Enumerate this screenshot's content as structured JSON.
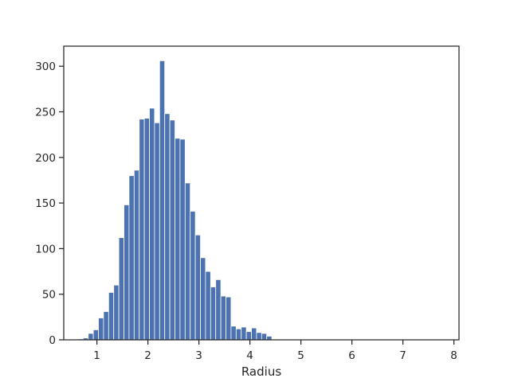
{
  "chart_data": {
    "type": "bar",
    "subtype": "histogram",
    "xlabel": "Radius",
    "ylabel": "",
    "title": "",
    "xlim": [
      0.35,
      8.1
    ],
    "ylim": [
      0,
      322
    ],
    "xticks": [
      1,
      2,
      3,
      4,
      5,
      6,
      7,
      8
    ],
    "yticks": [
      0,
      50,
      100,
      150,
      200,
      250,
      300
    ],
    "bar_color": "#4c72b0",
    "grid": false,
    "bin_start": 0.63,
    "bin_width": 0.1,
    "values": [
      1,
      2,
      7,
      11,
      24,
      31,
      52,
      60,
      112,
      148,
      180,
      186,
      242,
      243,
      254,
      238,
      306,
      248,
      241,
      221,
      220,
      172,
      141,
      115,
      90,
      75,
      58,
      66,
      48,
      47,
      15,
      12,
      14,
      9,
      13,
      8,
      7,
      4
    ]
  }
}
